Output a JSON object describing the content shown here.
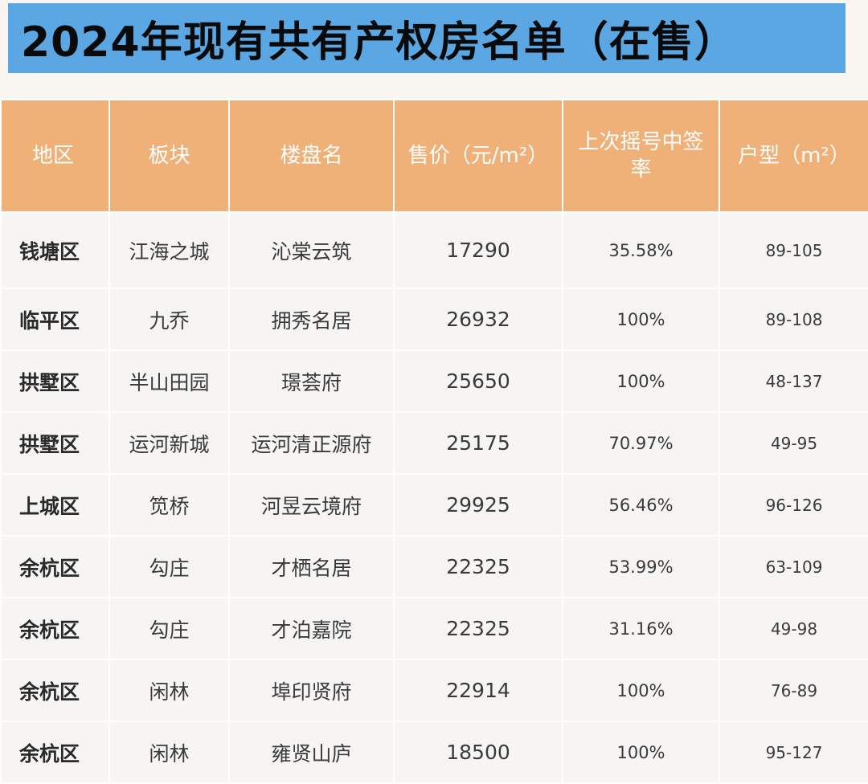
{
  "title": "2024年现有共有产权房名单（在售）",
  "header": {
    "region": "地区",
    "sector": "板块",
    "project": "楼盘名",
    "price": "售价（元/m²）",
    "rate": "上次摇号中签率",
    "layout": "户型（m²）"
  },
  "rows": [
    {
      "region": "钱塘区",
      "sector": "江海之城",
      "project": "沁棠云筑",
      "price": "17290",
      "rate": "35.58%",
      "layout": "89-105"
    },
    {
      "region": "临平区",
      "sector": "九乔",
      "project": "拥秀名居",
      "price": "26932",
      "rate": "100%",
      "layout": "89-108"
    },
    {
      "region": "拱墅区",
      "sector": "半山田园",
      "project": "璟荟府",
      "price": "25650",
      "rate": "100%",
      "layout": "48-137"
    },
    {
      "region": "拱墅区",
      "sector": "运河新城",
      "project": "运河清正源府",
      "price": "25175",
      "rate": "70.97%",
      "layout": "49-95"
    },
    {
      "region": "上城区",
      "sector": "笕桥",
      "project": "河昱云境府",
      "price": "29925",
      "rate": "56.46%",
      "layout": "96-126"
    },
    {
      "region": "余杭区",
      "sector": "勾庄",
      "project": "才栖名居",
      "price": "22325",
      "rate": "53.99%",
      "layout": "63-109"
    },
    {
      "region": "余杭区",
      "sector": "勾庄",
      "project": "才泊嘉院",
      "price": "22325",
      "rate": "31.16%",
      "layout": "49-98"
    },
    {
      "region": "余杭区",
      "sector": "闲林",
      "project": "埠印贤府",
      "price": "22914",
      "rate": "100%",
      "layout": "76-89"
    },
    {
      "region": "余杭区",
      "sector": "闲林",
      "project": "雍贤山庐",
      "price": "18500",
      "rate": "100%",
      "layout": "95-127"
    }
  ]
}
